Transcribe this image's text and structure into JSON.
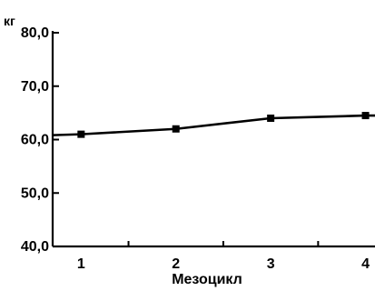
{
  "chart_data": {
    "type": "line",
    "title": "",
    "y_unit": "кг",
    "xlabel": "Мезоцикл",
    "ylabel": "",
    "x": [
      1,
      2,
      3,
      4
    ],
    "x_tick_labels": [
      "1",
      "2",
      "3",
      "4"
    ],
    "xlim": [
      0.7,
      4.1
    ],
    "ylim": [
      40,
      80
    ],
    "y_tick_values": [
      40,
      50,
      60,
      70,
      80
    ],
    "y_tick_labels": [
      "40,0",
      "50,0",
      "60,0",
      "70,0",
      "80,0"
    ],
    "series": [
      {
        "values": [
          61.0,
          62.0,
          64.0,
          64.5
        ]
      }
    ],
    "grid": false,
    "legend": "none",
    "line_color": "#000000"
  }
}
